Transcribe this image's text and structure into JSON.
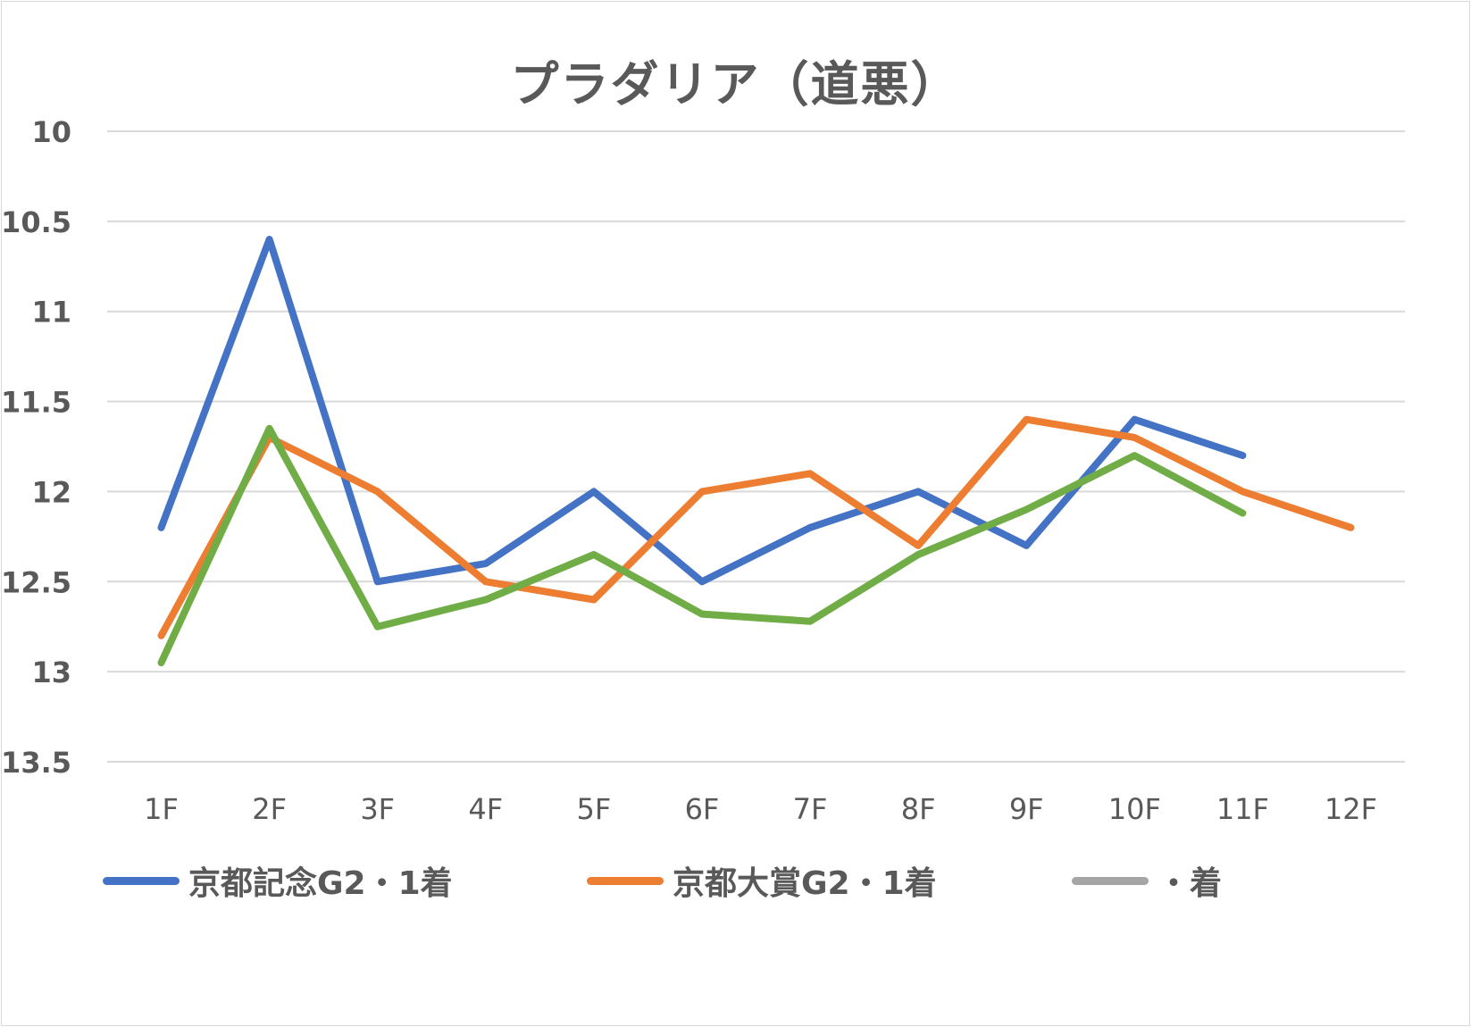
{
  "chart_data": {
    "type": "line",
    "title": "プラダリア（道悪）",
    "categories": [
      "1F",
      "2F",
      "3F",
      "4F",
      "5F",
      "6F",
      "7F",
      "8F",
      "9F",
      "10F",
      "11F",
      "12F"
    ],
    "ylim": [
      10,
      13.5
    ],
    "y_inverted": true,
    "yticks": [
      "10",
      "10.5",
      "11",
      "11.5",
      "12",
      "12.5",
      "13",
      "13.5"
    ],
    "grid": true,
    "legend_position": "bottom",
    "series": [
      {
        "name": "京都記念G2・1着",
        "color": "#4472C4",
        "values": [
          12.2,
          10.6,
          12.5,
          12.4,
          12.0,
          12.5,
          12.2,
          12.0,
          12.3,
          11.6,
          11.8,
          null
        ]
      },
      {
        "name": "京都大賞G2・1着",
        "color": "#ED7D31",
        "values": [
          12.8,
          11.7,
          12.0,
          12.5,
          12.6,
          12.0,
          11.9,
          12.3,
          11.6,
          11.7,
          12.0,
          12.2
        ]
      },
      {
        "name": "・着",
        "color": "#A5A5A5",
        "values": [
          null,
          null,
          null,
          null,
          null,
          null,
          null,
          null,
          null,
          null,
          null,
          null
        ]
      },
      {
        "name": "",
        "color": "#70AD47",
        "values": [
          12.95,
          11.65,
          12.75,
          12.6,
          12.35,
          12.68,
          12.72,
          12.35,
          12.1,
          11.8,
          12.12,
          null
        ]
      }
    ]
  }
}
